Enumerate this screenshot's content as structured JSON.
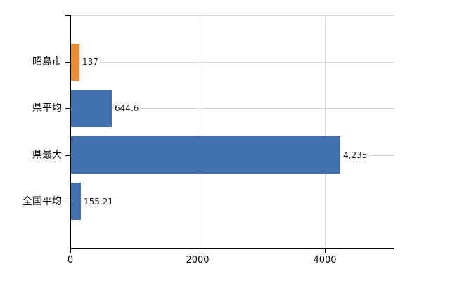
{
  "chart_data": {
    "type": "bar",
    "orientation": "horizontal",
    "title": "",
    "categories": [
      "昭島市",
      "県平均",
      "県最大",
      "全国平均"
    ],
    "values": [
      137,
      644.6,
      4235,
      155.21
    ],
    "value_labels": [
      "137",
      "644.6",
      "4,235",
      "155.21"
    ],
    "bar_colors": [
      "#EC8A35",
      "#4070B0",
      "#4070B0",
      "#4070B0"
    ],
    "highlight_color": "#EC8A35",
    "default_color": "#4070B0",
    "x_axis": {
      "ticks": [
        0,
        2000,
        4000
      ],
      "tick_labels": [
        "0",
        "2000",
        "4000"
      ],
      "range": [
        0,
        5085
      ]
    },
    "xlabel": "",
    "ylabel": "",
    "grid": true,
    "legend": false,
    "axis_color": "#000000",
    "grid_color": "#D8D8D8",
    "background_color": "#FFFFFF"
  }
}
